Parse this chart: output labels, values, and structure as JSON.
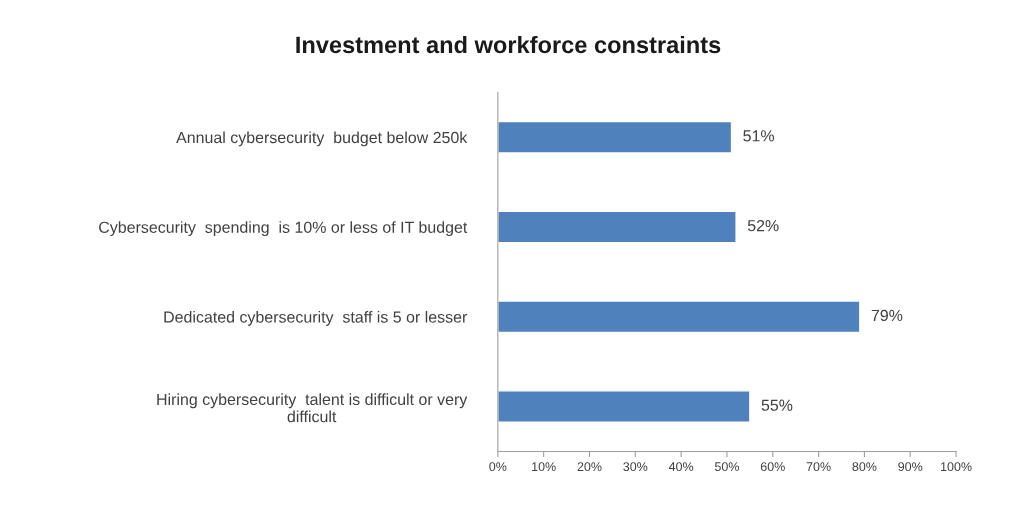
{
  "chart_data": {
    "type": "bar",
    "orientation": "horizontal",
    "title": "Investment and workforce constraints",
    "categories": [
      "Annual cybersecurity  budget below 250k",
      "Cybersecurity  spending  is 10% or less of IT budget",
      "Dedicated cybersecurity  staff is 5 or lesser",
      "Hiring cybersecurity  talent is difficult or very\ndifficult"
    ],
    "values": [
      51,
      52,
      79,
      55
    ],
    "value_labels": [
      "51%",
      "52%",
      "79%",
      "55%"
    ],
    "color": "#4f81bd",
    "xlim": [
      0,
      100
    ],
    "xticks": [
      {
        "value": 0,
        "label": "0%"
      },
      {
        "value": 10,
        "label": "10%"
      },
      {
        "value": 20,
        "label": "20%"
      },
      {
        "value": 30,
        "label": "30%"
      },
      {
        "value": 40,
        "label": "40%"
      },
      {
        "value": 50,
        "label": "50%"
      },
      {
        "value": 60,
        "label": "60%"
      },
      {
        "value": 70,
        "label": "70%"
      },
      {
        "value": 80,
        "label": "80%"
      },
      {
        "value": 90,
        "label": "90%"
      },
      {
        "value": 100,
        "label": "100%"
      }
    ],
    "grid": false,
    "legend": false
  }
}
